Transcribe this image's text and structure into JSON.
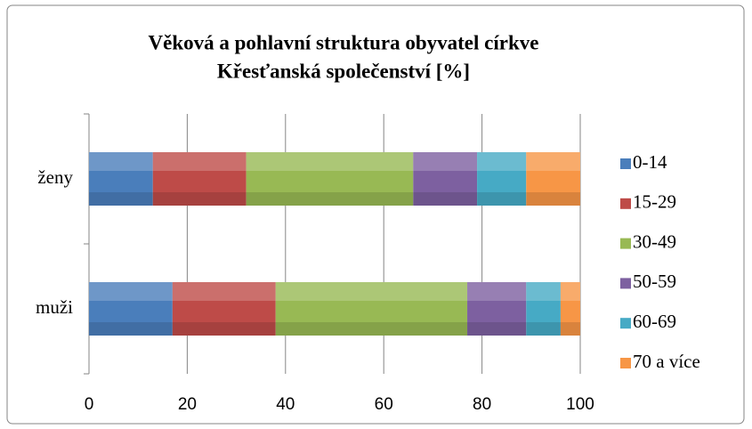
{
  "chart_data": {
    "type": "stacked-barh",
    "title": [
      "Věková a pohlavní struktura obyvatel církve",
      "Křesťanská společenství [%]"
    ],
    "categories": [
      "ženy",
      "muži"
    ],
    "series": [
      {
        "name": "0-14",
        "color": "#4a7ebb",
        "values": [
          13,
          17
        ]
      },
      {
        "name": "15-29",
        "color": "#be4b48",
        "values": [
          19,
          21
        ]
      },
      {
        "name": "30-49",
        "color": "#98b954",
        "values": [
          34,
          39
        ]
      },
      {
        "name": "50-59",
        "color": "#7d60a0",
        "values": [
          13,
          12
        ]
      },
      {
        "name": "60-69",
        "color": "#46aac5",
        "values": [
          10,
          7
        ]
      },
      {
        "name": "70 a více",
        "color": "#f79646",
        "values": [
          11,
          4
        ]
      }
    ],
    "xlim": [
      0,
      100
    ],
    "xticks": [
      0,
      20,
      40,
      60,
      80,
      100
    ],
    "grid": true,
    "legend": "right"
  }
}
